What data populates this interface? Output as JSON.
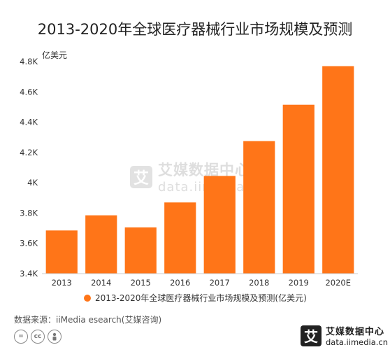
{
  "chart_data": {
    "type": "bar",
    "title": "2013-2020年全球医疗器械行业市场规模及预测",
    "unit_label": "亿美元",
    "categories": [
      "2013",
      "2014",
      "2015",
      "2016",
      "2017",
      "2018",
      "2019",
      "2020E"
    ],
    "series": [
      {
        "name": "2013-2020年全球医疗器械行业市场规模及预测(亿美元)",
        "values": [
          3685,
          3785,
          3705,
          3870,
          4045,
          4275,
          4515,
          4770
        ]
      }
    ],
    "ylim": [
      3400,
      4800
    ],
    "yticks": [
      3400,
      3600,
      3800,
      4000,
      4200,
      4400,
      4600,
      4800
    ],
    "ytick_labels": [
      "3.4K",
      "3.6K",
      "3.8K",
      "4K",
      "4.2K",
      "4.4K",
      "4.6K",
      "4.8K"
    ],
    "grid": false,
    "legend_position": "bottom",
    "bar_color": "#FF7518"
  },
  "footer": {
    "source": "数据来源：iiMedia esearch(艾媒咨询)"
  },
  "watermark": {
    "logo_char": "艾",
    "name_cn": "艾媒数据中心",
    "url": "data.iimedia.cn"
  },
  "brand": {
    "logo_char": "艾",
    "name_cn": "艾媒数据中心",
    "url": "data.iimedia.cn"
  },
  "license_icons": [
    "equal-icon",
    "cc-icon",
    "person-icon"
  ]
}
